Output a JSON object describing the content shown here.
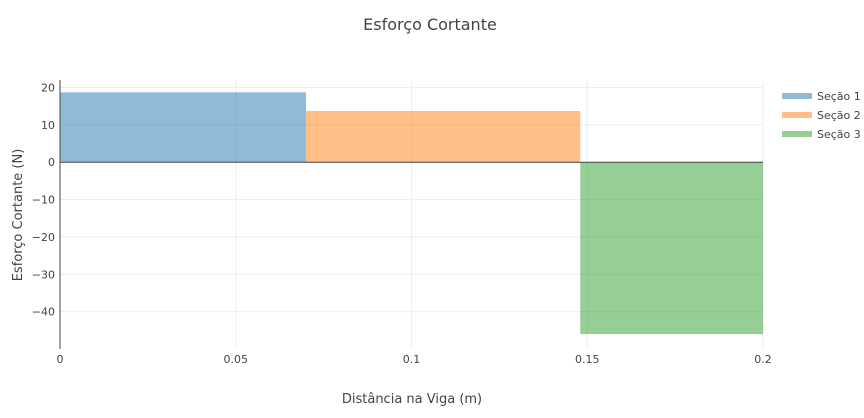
{
  "chart_data": {
    "type": "area",
    "title": "Esforço Cortante",
    "xlabel": "Distância na Viga (m)",
    "ylabel": "Esforço Cortante (N)",
    "xlim": [
      0,
      0.2
    ],
    "ylim": [
      -50,
      22
    ],
    "x_ticks": [
      0,
      0.05,
      0.1,
      0.15,
      0.2
    ],
    "x_tick_labels": [
      "0",
      "0.05",
      "0.1",
      "0.15",
      "0.2"
    ],
    "y_ticks": [
      20,
      10,
      0,
      -10,
      -20,
      -30,
      -40
    ],
    "y_tick_labels": [
      "20",
      "10",
      "0",
      "−10",
      "−20",
      "−30",
      "−40"
    ],
    "grid": true,
    "legend_position": "top-right",
    "series": [
      {
        "name": "Seção 1",
        "x": [
          0,
          0.07
        ],
        "values": [
          18.7,
          18.7
        ],
        "color": "#1f77b4"
      },
      {
        "name": "Seção 2",
        "x": [
          0.07,
          0.148
        ],
        "values": [
          13.7,
          13.7
        ],
        "color": "#ff7f0e"
      },
      {
        "name": "Seção 3",
        "x": [
          0.148,
          0.2
        ],
        "values": [
          -46,
          -46
        ],
        "color": "#2ca02c"
      }
    ]
  }
}
